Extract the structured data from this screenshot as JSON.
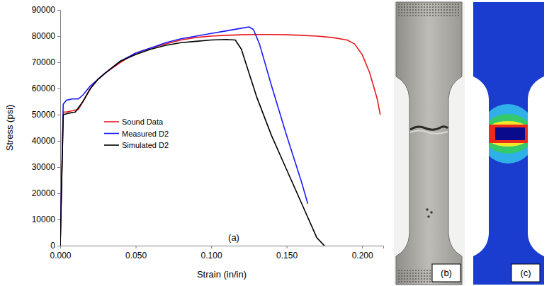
{
  "chart_data": {
    "type": "line",
    "xlabel": "Strain (in/in)",
    "ylabel": "Stress (psi)",
    "xlim": [
      0,
      0.214
    ],
    "ylim": [
      0,
      90000
    ],
    "xticks": [
      {
        "value": 0,
        "label": "0.000"
      },
      {
        "value": 0.05,
        "label": "0.050"
      },
      {
        "value": 0.1,
        "label": "0.100"
      },
      {
        "value": 0.15,
        "label": "0.150"
      },
      {
        "value": 0.2,
        "label": "0.200"
      }
    ],
    "yticks": [
      0,
      10000,
      20000,
      30000,
      40000,
      50000,
      60000,
      70000,
      80000,
      90000
    ],
    "grid": false,
    "legend": "left",
    "panel_label": "(a)",
    "series": [
      {
        "name": "Sound Data",
        "color": "#e8191e",
        "x": [
          0,
          0.002,
          0.004,
          0.008,
          0.012,
          0.016,
          0.02,
          0.025,
          0.03,
          0.04,
          0.05,
          0.06,
          0.07,
          0.08,
          0.09,
          0.1,
          0.11,
          0.12,
          0.13,
          0.14,
          0.15,
          0.16,
          0.17,
          0.18,
          0.19,
          0.195,
          0.2,
          0.205,
          0.21,
          0.212
        ],
        "values": [
          0,
          51000,
          51000,
          51500,
          52000,
          56000,
          60000,
          63500,
          66000,
          70000,
          73500,
          75500,
          77000,
          78500,
          79500,
          80000,
          80300,
          80500,
          80600,
          80600,
          80500,
          80300,
          80000,
          79500,
          78500,
          77000,
          73000,
          66000,
          56000,
          50000
        ]
      },
      {
        "name": "Measured D2",
        "color": "#1a1aff",
        "x": [
          0,
          0.002,
          0.004,
          0.008,
          0.012,
          0.015,
          0.02,
          0.025,
          0.03,
          0.04,
          0.05,
          0.06,
          0.07,
          0.08,
          0.09,
          0.1,
          0.11,
          0.12,
          0.125,
          0.128,
          0.132,
          0.14,
          0.15,
          0.16,
          0.164
        ],
        "values": [
          0,
          54000,
          55500,
          56000,
          56000,
          57500,
          61000,
          63500,
          66000,
          70500,
          73500,
          75500,
          77500,
          79000,
          80000,
          81000,
          82000,
          83000,
          83500,
          82500,
          77000,
          61000,
          42000,
          24000,
          16000
        ]
      },
      {
        "name": "Simulated D2",
        "color": "#000000",
        "x": [
          0,
          0.002,
          0.005,
          0.01,
          0.015,
          0.02,
          0.025,
          0.03,
          0.04,
          0.05,
          0.06,
          0.07,
          0.08,
          0.09,
          0.1,
          0.11,
          0.116,
          0.12,
          0.125,
          0.13,
          0.14,
          0.15,
          0.16,
          0.17,
          0.175
        ],
        "values": [
          0,
          50000,
          50500,
          51000,
          55000,
          60000,
          63500,
          66000,
          70500,
          73000,
          75000,
          76500,
          77500,
          78000,
          78500,
          78700,
          78500,
          75000,
          66000,
          57000,
          42000,
          29000,
          16000,
          3000,
          0
        ]
      }
    ]
  },
  "images": [
    {
      "label": "(b)"
    },
    {
      "label": "(c)"
    }
  ]
}
